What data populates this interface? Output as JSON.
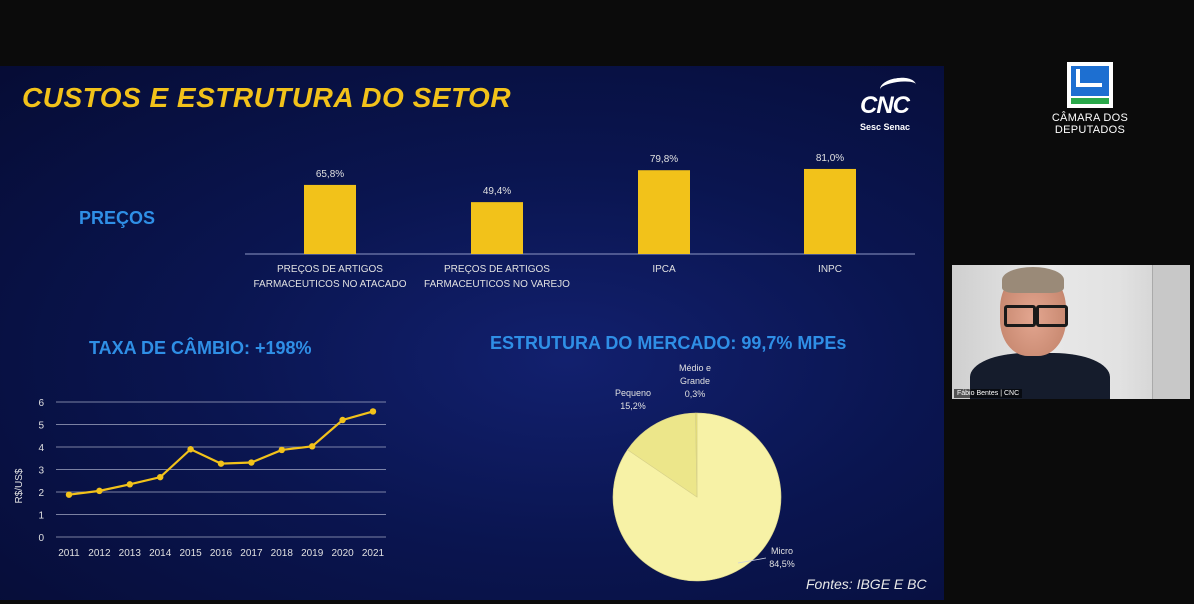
{
  "slide": {
    "title": "CUSTOS E ESTRUTURA DO SETOR",
    "logo": {
      "name": "CNC",
      "sub": "Sesc  Senac"
    },
    "sections": {
      "precos": "PREÇOS",
      "cambio": "TAXA DE CÂMBIO: +198%",
      "mercado": "ESTRUTURA DO MERCADO: 99,7% MPEs"
    },
    "fontes": "Fontes: IBGE E BC"
  },
  "chart_data": [
    {
      "type": "bar",
      "categories": [
        [
          "PREÇOS DE ARTIGOS",
          "FARMACEUTICOS NO ATACADO"
        ],
        [
          "PREÇOS DE ARTIGOS",
          "FARMACEUTICOS NO VAREJO"
        ],
        [
          "IPCA"
        ],
        [
          "INPC"
        ]
      ],
      "values": [
        65.8,
        49.4,
        79.8,
        81.0
      ],
      "data_labels": [
        "65,8%",
        "49,4%",
        "79,8%",
        "81,0%"
      ],
      "ylim": [
        0,
        100
      ],
      "color": "#f2c21a"
    },
    {
      "type": "line",
      "x": [
        "2011",
        "2012",
        "2013",
        "2014",
        "2015",
        "2016",
        "2017",
        "2018",
        "2019",
        "2020",
        "2021"
      ],
      "values": [
        1.88,
        2.05,
        2.34,
        2.66,
        3.9,
        3.26,
        3.31,
        3.87,
        4.03,
        5.2,
        5.58
      ],
      "ylabel": "R$/US$",
      "yticks": [
        "0",
        "1",
        "2",
        "3",
        "4",
        "5",
        "6"
      ],
      "ylim": [
        0,
        6
      ],
      "grid": true,
      "color": "#f2c21a"
    },
    {
      "type": "pie",
      "slices": [
        {
          "name": "Micro",
          "value": 84.5,
          "label": "84,5%",
          "color": "#f7f2a6"
        },
        {
          "name": "Pequeno",
          "value": 15.2,
          "label": "15,2%",
          "color": "#ece68a"
        },
        {
          "name": "Médio e Grande",
          "name_lines": [
            "Médio e",
            "Grande"
          ],
          "value": 0.3,
          "label": "0,3%",
          "color": "#e6df70"
        }
      ]
    }
  ],
  "sidebar": {
    "camara": {
      "line1": "CÂMARA DOS",
      "line2": "DEPUTADOS"
    },
    "video": {
      "participant": "Fábio Bentes | CNC"
    }
  }
}
